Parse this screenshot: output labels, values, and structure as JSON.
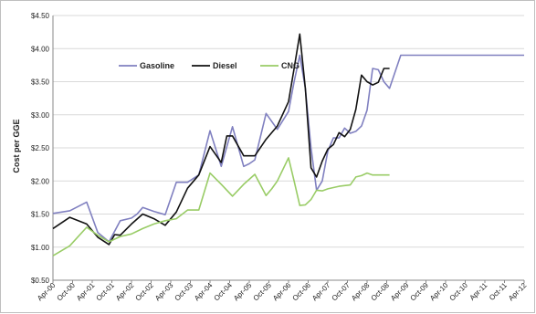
{
  "chart_data": {
    "type": "line",
    "title": "",
    "xlabel": "",
    "ylabel": "Cost per GGE",
    "ylim": [
      0.5,
      4.5
    ],
    "y_ticks": [
      "$0.50",
      "$1.00",
      "$1.50",
      "$2.00",
      "$2.50",
      "$3.00",
      "$3.50",
      "$4.00",
      "$4.50"
    ],
    "y_tick_values": [
      0.5,
      1.0,
      1.5,
      2.0,
      2.5,
      3.0,
      3.5,
      4.0,
      4.5
    ],
    "x_labels": [
      "Apr-00",
      "Oct-00",
      "Apr-01",
      "Oct-01",
      "Apr-02",
      "Oct-02",
      "Apr-03",
      "Oct-03",
      "Apr-04",
      "Oct-04",
      "Apr-05",
      "Oct-05",
      "Apr-06",
      "Oct-06",
      "Apr-07",
      "Oct-07",
      "Apr-08",
      "Oct-08",
      "Apr-09",
      "Oct-09",
      "Apr-10",
      "Oct-10",
      "Apr-11",
      "Oct-11",
      "Apr-12"
    ],
    "grid": "horizontal",
    "legend_position": "top-left",
    "series": [
      {
        "name": "Gasoline",
        "color": "#8080c0",
        "x": [
          0,
          3,
          6,
          8,
          10,
          12,
          14,
          15,
          16,
          18,
          20,
          22,
          24,
          26,
          28,
          30,
          32,
          34,
          35,
          36,
          38,
          40,
          42,
          43,
          44,
          45,
          46,
          47,
          48,
          49,
          50,
          51,
          52,
          53,
          54,
          55,
          56,
          57,
          58,
          59,
          60,
          62,
          64,
          66,
          68,
          70,
          72,
          74,
          76,
          78,
          80,
          82,
          84
        ],
        "y": [
          1.51,
          1.55,
          1.68,
          1.22,
          1.08,
          1.4,
          1.44,
          1.5,
          1.6,
          1.54,
          1.49,
          1.98,
          1.98,
          2.09,
          2.76,
          2.22,
          2.82,
          2.22,
          2.26,
          2.32,
          3.02,
          2.78,
          3.05,
          3.5,
          3.9,
          3.4,
          2.5,
          1.86,
          2.0,
          2.45,
          2.65,
          2.65,
          2.8,
          2.72,
          2.75,
          2.83,
          3.07,
          3.7,
          3.68,
          3.5,
          3.4,
          3.9,
          3.9,
          3.9,
          3.9,
          3.9,
          3.9,
          3.9,
          3.9,
          3.9,
          3.9,
          3.9,
          3.9
        ]
      },
      {
        "name": "Diesel",
        "color": "#111111",
        "x": [
          0,
          3,
          6,
          8,
          10,
          11,
          12,
          14,
          16,
          18,
          20,
          22,
          24,
          26,
          28,
          30,
          31,
          32,
          34,
          36,
          38,
          40,
          42,
          43,
          44,
          45,
          46,
          47,
          48,
          49,
          50,
          51,
          52,
          53,
          54,
          55,
          56,
          57,
          58,
          59,
          60
        ],
        "y": [
          1.28,
          1.45,
          1.35,
          1.15,
          1.04,
          1.19,
          1.18,
          1.35,
          1.5,
          1.43,
          1.33,
          1.53,
          1.89,
          2.09,
          2.52,
          2.28,
          2.68,
          2.68,
          2.38,
          2.38,
          2.63,
          2.83,
          3.2,
          3.7,
          4.22,
          3.4,
          2.2,
          2.06,
          2.3,
          2.48,
          2.55,
          2.73,
          2.67,
          2.78,
          3.08,
          3.6,
          3.5,
          3.45,
          3.49,
          3.7,
          3.7
        ]
      },
      {
        "name": "CNG",
        "color": "#99cc66",
        "x": [
          0,
          3,
          6,
          8,
          10,
          12,
          14,
          16,
          18,
          20,
          22,
          24,
          26,
          28,
          30,
          32,
          34,
          36,
          38,
          39,
          40,
          42,
          43,
          44,
          45,
          46,
          47,
          48,
          49,
          50,
          51,
          52,
          53,
          54,
          55,
          56,
          57,
          58,
          59,
          60
        ],
        "y": [
          0.87,
          1.02,
          1.3,
          1.18,
          1.08,
          1.16,
          1.2,
          1.28,
          1.35,
          1.4,
          1.43,
          1.56,
          1.56,
          2.12,
          1.95,
          1.77,
          1.95,
          2.1,
          1.78,
          1.88,
          2.0,
          2.35,
          2.0,
          1.63,
          1.64,
          1.72,
          1.86,
          1.85,
          1.88,
          1.9,
          1.92,
          1.93,
          1.94,
          2.06,
          2.08,
          2.12,
          2.09,
          2.09,
          2.09,
          2.09
        ]
      }
    ]
  }
}
